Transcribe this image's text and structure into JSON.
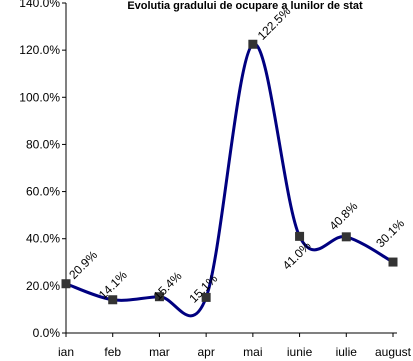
{
  "chart_data": {
    "type": "line",
    "title": "Evolutia gradului de ocupare a lunilor de stat",
    "categories": [
      "ian",
      "feb",
      "mar",
      "apr",
      "mai",
      "iunie",
      "iulie",
      "august"
    ],
    "series": [
      {
        "values": [
          20.9,
          14.1,
          15.4,
          15.1,
          122.5,
          41.0,
          40.8,
          30.1
        ],
        "labels": [
          "20.9%",
          "14.1%",
          "15.4%",
          "15.1%",
          "122.5%",
          "41.0%",
          "40.8%",
          "30.1%"
        ],
        "color": "#000080",
        "marker_color": "#333333"
      }
    ],
    "y_ticks": [
      "0.0%",
      "20.0%",
      "40.0%",
      "60.0%",
      "80.0%",
      "100.0%",
      "120.0%",
      "140.0%"
    ],
    "ylim": [
      0,
      140
    ],
    "xlabel": "",
    "ylabel": "",
    "grid": false,
    "legend": "none"
  }
}
